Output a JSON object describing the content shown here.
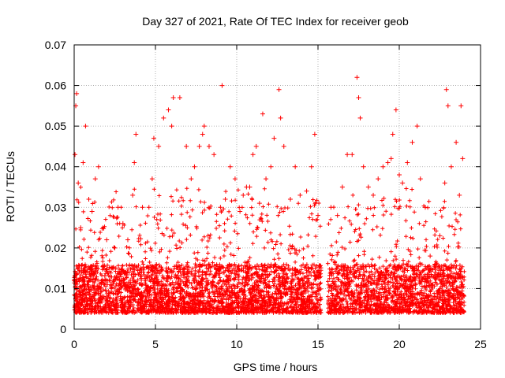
{
  "chart_data": {
    "type": "scatter",
    "title": "Day 327 of 2021, Rate Of TEC Index for receiver geob",
    "xlabel": "GPS time / hours",
    "ylabel": "ROTI / TECUs",
    "xlim": [
      0,
      25
    ],
    "ylim": [
      0,
      0.07
    ],
    "xticks": [
      "0",
      "5",
      "10",
      "15",
      "20",
      "25"
    ],
    "yticks": [
      "0",
      "0.01",
      "0.02",
      "0.03",
      "0.04",
      "0.05",
      "0.06",
      "0.07"
    ],
    "grid": true,
    "marker": "+",
    "color": "#ff0000",
    "data_gap_hours": [
      15.2,
      15.6
    ],
    "series": [
      {
        "points": [
          [
            0.0,
            0.012
          ],
          [
            0.05,
            0.043
          ],
          [
            0.1,
            0.055
          ],
          [
            0.15,
            0.058
          ],
          [
            0.25,
            0.036
          ],
          [
            0.4,
            0.025
          ],
          [
            0.55,
            0.041
          ],
          [
            0.7,
            0.05
          ],
          [
            0.9,
            0.032
          ],
          [
            1.1,
            0.029
          ],
          [
            1.3,
            0.037
          ],
          [
            1.5,
            0.04
          ],
          [
            2.0,
            0.022
          ],
          [
            2.5,
            0.02
          ],
          [
            2.7,
            0.03
          ],
          [
            3.0,
            0.026
          ],
          [
            3.3,
            0.022
          ],
          [
            3.6,
            0.033
          ],
          [
            3.7,
            0.041
          ],
          [
            3.8,
            0.048
          ],
          [
            4.2,
            0.03
          ],
          [
            4.6,
            0.03
          ],
          [
            4.8,
            0.037
          ],
          [
            4.9,
            0.047
          ],
          [
            5.2,
            0.045
          ],
          [
            5.5,
            0.052
          ],
          [
            5.8,
            0.054
          ],
          [
            6.0,
            0.05
          ],
          [
            6.1,
            0.057
          ],
          [
            6.5,
            0.057
          ],
          [
            6.9,
            0.045
          ],
          [
            7.2,
            0.037
          ],
          [
            7.4,
            0.04
          ],
          [
            7.7,
            0.045
          ],
          [
            7.9,
            0.048
          ],
          [
            8.0,
            0.05
          ],
          [
            8.3,
            0.045
          ],
          [
            8.6,
            0.043
          ],
          [
            9.0,
            0.03
          ],
          [
            9.1,
            0.06
          ],
          [
            9.3,
            0.032
          ],
          [
            9.6,
            0.04
          ],
          [
            9.9,
            0.037
          ],
          [
            10.2,
            0.029
          ],
          [
            10.4,
            0.033
          ],
          [
            10.6,
            0.035
          ],
          [
            10.8,
            0.035
          ],
          [
            11.0,
            0.043
          ],
          [
            11.2,
            0.045
          ],
          [
            11.4,
            0.031
          ],
          [
            11.6,
            0.053
          ],
          [
            11.8,
            0.037
          ],
          [
            12.1,
            0.04
          ],
          [
            12.3,
            0.047
          ],
          [
            12.6,
            0.059
          ],
          [
            12.7,
            0.052
          ],
          [
            12.9,
            0.045
          ],
          [
            13.3,
            0.032
          ],
          [
            13.6,
            0.04
          ],
          [
            13.9,
            0.033
          ],
          [
            14.3,
            0.034
          ],
          [
            14.6,
            0.04
          ],
          [
            14.8,
            0.048
          ],
          [
            15.0,
            0.028
          ],
          [
            15.8,
            0.03
          ],
          [
            16.2,
            0.028
          ],
          [
            16.5,
            0.035
          ],
          [
            16.8,
            0.043
          ],
          [
            17.1,
            0.043
          ],
          [
            17.4,
            0.062
          ],
          [
            17.5,
            0.057
          ],
          [
            17.6,
            0.052
          ],
          [
            17.8,
            0.04
          ],
          [
            18.1,
            0.035
          ],
          [
            18.4,
            0.033
          ],
          [
            18.7,
            0.037
          ],
          [
            19.0,
            0.04
          ],
          [
            19.3,
            0.041
          ],
          [
            19.5,
            0.042
          ],
          [
            19.6,
            0.048
          ],
          [
            19.8,
            0.054
          ],
          [
            20.0,
            0.038
          ],
          [
            20.2,
            0.036
          ],
          [
            20.5,
            0.041
          ],
          [
            20.8,
            0.046
          ],
          [
            21.1,
            0.05
          ],
          [
            21.3,
            0.037
          ],
          [
            21.6,
            0.03
          ],
          [
            21.9,
            0.018
          ],
          [
            22.2,
            0.016
          ],
          [
            22.5,
            0.023
          ],
          [
            22.8,
            0.036
          ],
          [
            22.9,
            0.059
          ],
          [
            23.0,
            0.055
          ],
          [
            23.2,
            0.04
          ],
          [
            23.5,
            0.046
          ],
          [
            23.7,
            0.033
          ],
          [
            23.8,
            0.055
          ],
          [
            23.9,
            0.042
          ]
        ]
      }
    ]
  }
}
